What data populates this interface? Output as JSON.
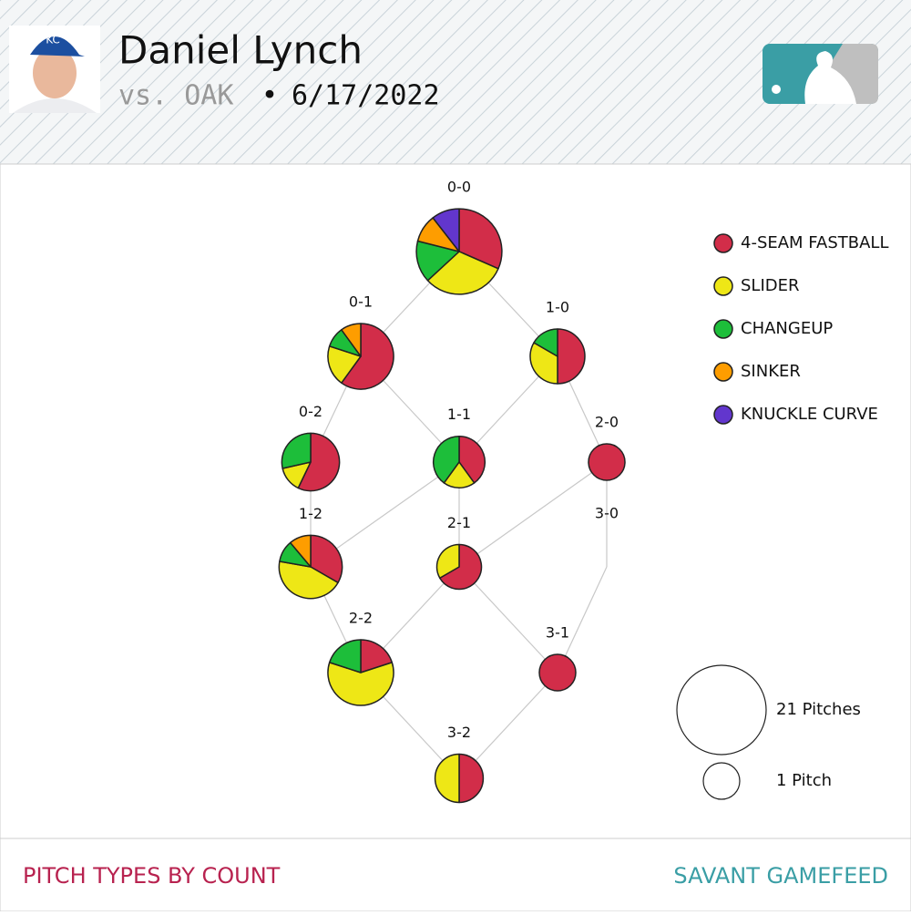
{
  "header": {
    "title": "Daniel Lynch",
    "opponent": "vs. OAK",
    "separator": "•",
    "date": "6/17/2022"
  },
  "chart_data": {
    "type": "pie",
    "categories": [
      "0-0",
      "0-1",
      "1-0",
      "0-2",
      "1-1",
      "2-0",
      "1-2",
      "2-1",
      "3-0",
      "2-2",
      "3-1",
      "3-2"
    ],
    "series": [
      {
        "name": "4-SEAM FASTBALL",
        "color": "#d22d49",
        "values": [
          6,
          6,
          3,
          4,
          2,
          1,
          3,
          2,
          0,
          2,
          1,
          2
        ]
      },
      {
        "name": "SLIDER",
        "color": "#eee716",
        "values": [
          6,
          2,
          2,
          1,
          1,
          0,
          4,
          1,
          0,
          6,
          0,
          2
        ]
      },
      {
        "name": "CHANGEUP",
        "color": "#1dbe3a",
        "values": [
          3,
          1,
          1,
          2,
          2,
          0,
          1,
          0,
          0,
          2,
          0,
          0
        ]
      },
      {
        "name": "SINKER",
        "color": "#fe9d00",
        "values": [
          2,
          1,
          0,
          0,
          0,
          0,
          1,
          0,
          0,
          0,
          0,
          0
        ]
      },
      {
        "name": "KNUCKLE CURVE",
        "color": "#6236cd",
        "values": [
          2,
          0,
          0,
          0,
          0,
          0,
          0,
          0,
          0,
          0,
          0,
          0
        ]
      }
    ],
    "size_legend": {
      "values": [
        21,
        1
      ],
      "value_labels": [
        "21 Pitches",
        "1 Pitch"
      ]
    }
  },
  "footer": {
    "left": "PITCH TYPES BY COUNT",
    "right": "SAVANT GAMEFEED"
  }
}
